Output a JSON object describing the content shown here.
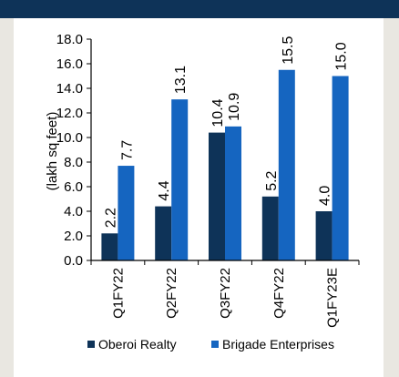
{
  "colors": {
    "series_oberoi": "#0e3358",
    "series_brigade": "#1565c0",
    "axis": "#000000"
  },
  "chart_data": {
    "type": "bar",
    "title": "",
    "xlabel": "",
    "ylabel": "(lakh sq feet)",
    "categories": [
      "Q1FY22",
      "Q2FY22",
      "Q3FY22",
      "Q4FY22",
      "Q1FY23E"
    ],
    "series": [
      {
        "name": "Oberoi Realty",
        "values": [
          2.2,
          4.4,
          10.4,
          5.2,
          4.0
        ],
        "labels": [
          "2.2",
          "4.4",
          "10.4",
          "5.2",
          "4.0"
        ]
      },
      {
        "name": "Brigade Enterprises",
        "values": [
          7.7,
          13.1,
          10.9,
          15.5,
          15.0
        ],
        "labels": [
          "7.7",
          "13.1",
          "10.9",
          "15.5",
          "15.0"
        ]
      }
    ],
    "ylim": [
      0,
      18
    ],
    "yticks": [
      "0.0",
      "2.0",
      "4.0",
      "6.0",
      "8.0",
      "10.0",
      "12.0",
      "14.0",
      "16.0",
      "18.0"
    ],
    "grid": false,
    "legend": "bottom"
  }
}
